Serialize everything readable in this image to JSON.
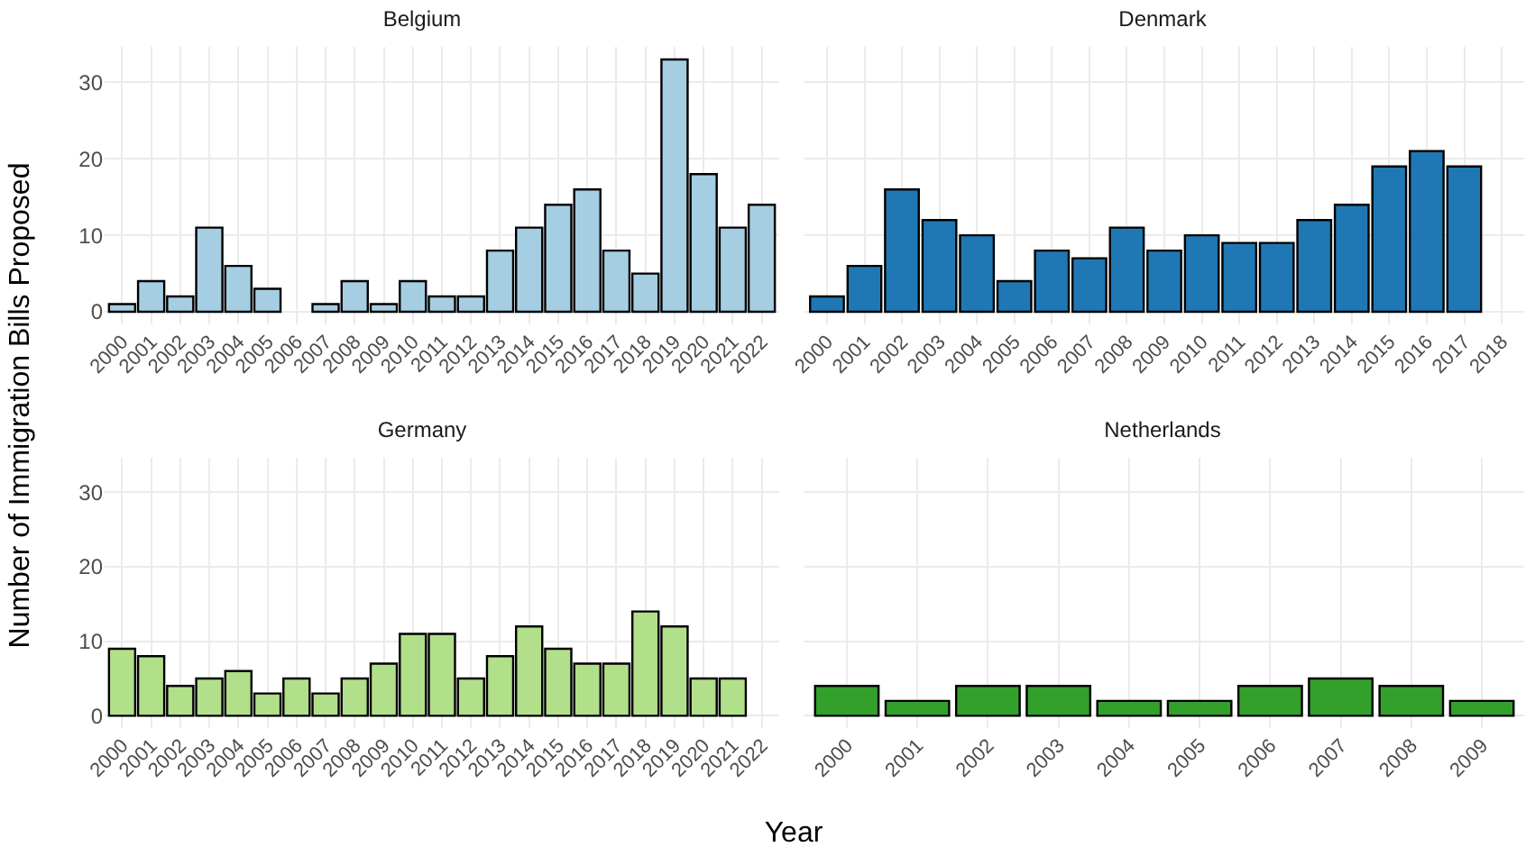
{
  "chart_data": [
    {
      "type": "bar",
      "title": "Belgium",
      "ylabel": "Number of Immigration Bills Proposed",
      "categories": [
        "2000",
        "2001",
        "2002",
        "2003",
        "2004",
        "2005",
        "2006",
        "2007",
        "2008",
        "2009",
        "2010",
        "2011",
        "2012",
        "2013",
        "2014",
        "2015",
        "2016",
        "2017",
        "2018",
        "2019",
        "2020",
        "2021",
        "2022"
      ],
      "values": [
        1,
        4,
        2,
        11,
        6,
        3,
        null,
        1,
        4,
        1,
        4,
        2,
        2,
        8,
        11,
        14,
        16,
        8,
        5,
        33,
        18,
        11,
        14
      ],
      "color": "#a6cee3",
      "ylim": [
        -1.65,
        34.65
      ],
      "yticks": [
        0,
        10,
        20,
        30
      ],
      "grid": true
    },
    {
      "type": "bar",
      "title": "Denmark",
      "categories": [
        "2000",
        "2001",
        "2002",
        "2003",
        "2004",
        "2005",
        "2006",
        "2007",
        "2008",
        "2009",
        "2010",
        "2011",
        "2012",
        "2013",
        "2014",
        "2015",
        "2016",
        "2017",
        "2018"
      ],
      "values": [
        2,
        6,
        16,
        12,
        10,
        4,
        8,
        7,
        11,
        8,
        10,
        9,
        9,
        12,
        14,
        19,
        21,
        19,
        null
      ],
      "color": "#1f78b4",
      "ylim": [
        -1.65,
        34.65
      ],
      "yticks": [
        0,
        10,
        20,
        30
      ],
      "grid": true,
      "tick_labels": "x"
    },
    {
      "type": "bar",
      "title": "Germany",
      "xlabel": "Year",
      "categories": [
        "2000",
        "2001",
        "2002",
        "2003",
        "2004",
        "2005",
        "2006",
        "2007",
        "2008",
        "2009",
        "2010",
        "2011",
        "2012",
        "2013",
        "2014",
        "2015",
        "2016",
        "2017",
        "2018",
        "2019",
        "2020",
        "2021",
        "2022"
      ],
      "values": [
        9,
        8,
        4,
        5,
        6,
        3,
        5,
        3,
        5,
        7,
        11,
        11,
        5,
        8,
        12,
        9,
        7,
        7,
        14,
        12,
        5,
        5,
        null
      ],
      "color": "#b2df8a",
      "ylim": [
        -1.65,
        34.65
      ],
      "yticks": [
        0,
        10,
        20,
        30
      ],
      "grid": true
    },
    {
      "type": "bar",
      "title": "Netherlands",
      "categories": [
        "2000",
        "2001",
        "2002",
        "2003",
        "2004",
        "2005",
        "2006",
        "2007",
        "2008",
        "2009"
      ],
      "values": [
        4,
        2,
        4,
        4,
        2,
        2,
        4,
        5,
        4,
        2
      ],
      "color": "#33a02c",
      "ylim": [
        -1.65,
        34.65
      ],
      "yticks": [
        0,
        10,
        20,
        30
      ],
      "grid": true,
      "tick_labels": "x"
    }
  ]
}
